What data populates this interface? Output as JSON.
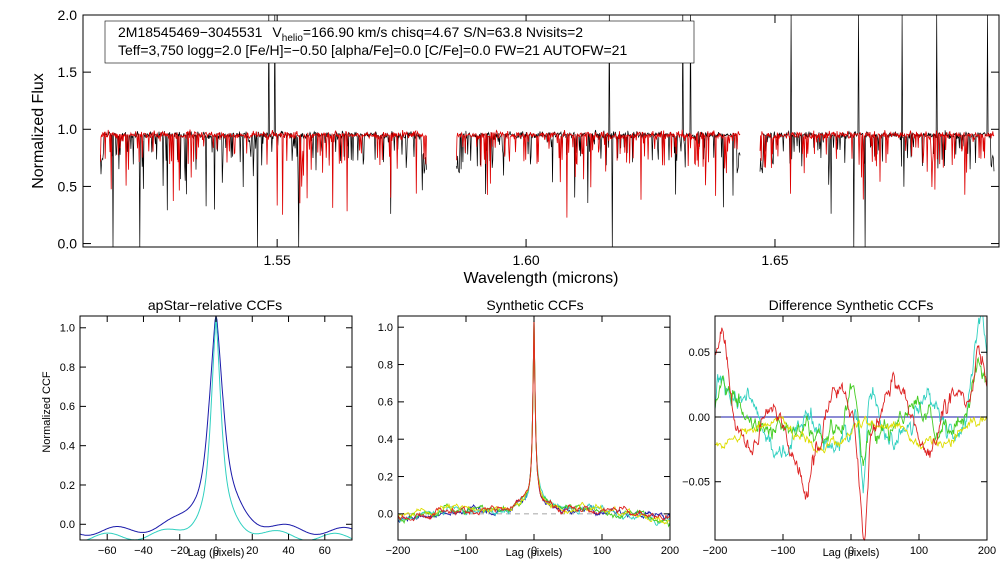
{
  "chart_data": [
    {
      "type": "line",
      "panel": "spectrum",
      "xlabel": "Wavelength (microns)",
      "ylabel": "Normalized Flux",
      "xlim": [
        1.511,
        1.695
      ],
      "ylim": [
        -0.03,
        2.0
      ],
      "xticks": [
        "1.55",
        "1.60",
        "1.65"
      ],
      "xtick_values": [
        1.55,
        1.6,
        1.65
      ],
      "yticks": [
        "0.0",
        "0.5",
        "1.0",
        "1.5",
        "2.0"
      ],
      "ytick_values": [
        0.0,
        0.5,
        1.0,
        1.5,
        2.0
      ],
      "annotation": {
        "star_id": "2M18545469−3045531",
        "v_prefix": "V",
        "v_sub": "helio",
        "v_rest": "=166.90 km/s  chisq=4.67  S/N=63.8  Nvisits=2",
        "line2": "Teff=3,750 logg=2.0 [Fe/H]=−0.50 [alpha/Fe]=0.0 [C/Fe]=0.0 FW=21 AUTOFW=21"
      },
      "chips": [
        [
          1.5145,
          1.58
        ],
        [
          1.586,
          1.643
        ],
        [
          1.647,
          1.694
        ]
      ],
      "series": [
        {
          "name": "observed",
          "color": "#000000"
        },
        {
          "name": "model",
          "color": "#dd0000"
        }
      ],
      "continuum": 0.95
    },
    {
      "type": "line",
      "panel": "apstar-ccf",
      "title": "apStar−relative CCFs",
      "xlabel": "Lag (pixels)",
      "ylabel": "Normalized CCF",
      "xlim": [
        -75,
        75
      ],
      "ylim": [
        -0.08,
        1.06
      ],
      "xticks": [
        "−60",
        "−40",
        "−20",
        "0",
        "20",
        "40",
        "60"
      ],
      "xtick_values": [
        -60,
        -40,
        -20,
        0,
        20,
        40,
        60
      ],
      "yticks": [
        "0.0",
        "0.2",
        "0.4",
        "0.6",
        "0.8",
        "1.0"
      ],
      "ytick_values": [
        0.0,
        0.2,
        0.4,
        0.6,
        0.8,
        1.0
      ],
      "series": [
        {
          "name": "visit 1",
          "color": "#1a1aaa",
          "peak": 0.99,
          "width": 7,
          "base": -0.04
        },
        {
          "name": "visit 2",
          "color": "#30d0c0",
          "peak": 0.96,
          "width": 5,
          "base": -0.07
        }
      ]
    },
    {
      "type": "line",
      "panel": "synthetic-ccf",
      "title": "Synthetic CCFs",
      "xlabel": "Lag (pixels)",
      "xlim": [
        -200,
        200
      ],
      "ylim": [
        -0.14,
        1.06
      ],
      "xticks": [
        "−200",
        "−100",
        "0",
        "100",
        "200"
      ],
      "xtick_values": [
        -200,
        -100,
        0,
        100,
        200
      ],
      "yticks": [
        "0.0",
        "0.2",
        "0.4",
        "0.6",
        "0.8",
        "1.0"
      ],
      "ytick_values": [
        0.0,
        0.2,
        0.4,
        0.6,
        0.8,
        1.0
      ],
      "reference_line": 0.0,
      "series": [
        {
          "name": "s1",
          "color": "#1a1aaa"
        },
        {
          "name": "s2",
          "color": "#30d0c0"
        },
        {
          "name": "s3",
          "color": "#44cc22"
        },
        {
          "name": "s4",
          "color": "#dddd00"
        },
        {
          "name": "s5",
          "color": "#dd2222"
        }
      ]
    },
    {
      "type": "line",
      "panel": "difference-ccf",
      "title": "Difference Synthetic CCFs",
      "xlabel": "Lag (pixels)",
      "xlim": [
        -200,
        200
      ],
      "ylim": [
        -0.095,
        0.078
      ],
      "xticks": [
        "−200",
        "−100",
        "0",
        "100",
        "200"
      ],
      "xtick_values": [
        -200,
        -100,
        0,
        100,
        200
      ],
      "yticks": [
        "−0.05",
        "0.00",
        "0.05"
      ],
      "ytick_values": [
        -0.05,
        0.0,
        0.05
      ],
      "reference_line": 0.0,
      "reference_color": "#1a1aaa",
      "series": [
        {
          "name": "d1",
          "color": "#30d0c0"
        },
        {
          "name": "d2",
          "color": "#44cc22"
        },
        {
          "name": "d3",
          "color": "#dddd00"
        },
        {
          "name": "d4",
          "color": "#dd2222"
        }
      ]
    }
  ]
}
